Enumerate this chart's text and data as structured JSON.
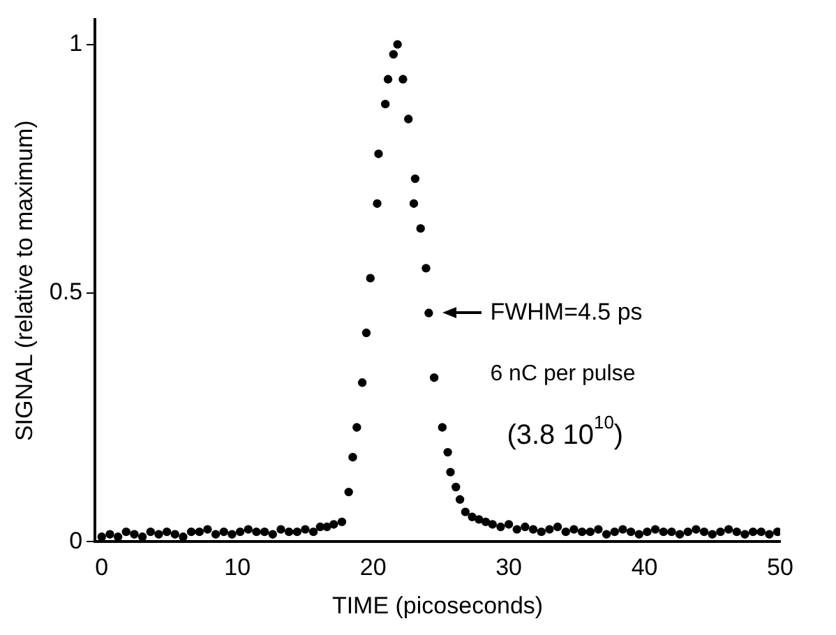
{
  "chart_data": {
    "type": "scatter",
    "xlabel": "TIME (picoseconds)",
    "ylabel": "SIGNAL (relative to maximum)",
    "x": [
      0,
      0.6,
      1.2,
      1.8,
      2.4,
      3,
      3.6,
      4.2,
      4.8,
      5.4,
      6,
      6.6,
      7.2,
      7.8,
      8.4,
      9,
      9.6,
      10.2,
      10.8,
      11.4,
      12,
      12.6,
      13.2,
      13.8,
      14.4,
      15,
      15.6,
      16.1,
      16.6,
      17.1,
      17.7,
      18.2,
      18.5,
      18.8,
      19.2,
      19.5,
      19.8,
      20.3,
      20.4,
      20.9,
      21.1,
      21.5,
      21.8,
      22.2,
      22.6,
      23,
      23.1,
      23.5,
      23.9,
      24.1,
      24.5,
      25.1,
      25.5,
      25.7,
      26.1,
      26.4,
      26.8,
      27.3,
      27.8,
      28.3,
      28.8,
      29.4,
      30,
      30.6,
      31.2,
      31.8,
      32.4,
      33,
      33.6,
      34.2,
      34.8,
      35.4,
      36,
      36.6,
      37.2,
      37.8,
      38.4,
      39,
      39.6,
      40.2,
      40.8,
      41.4,
      42,
      42.6,
      43.2,
      43.8,
      44.4,
      45,
      45.6,
      46.2,
      46.8,
      47.4,
      48,
      48.6,
      49.2,
      49.8
    ],
    "values": [
      0.01,
      0.015,
      0.01,
      0.02,
      0.015,
      0.01,
      0.02,
      0.015,
      0.02,
      0.015,
      0.01,
      0.02,
      0.02,
      0.025,
      0.015,
      0.02,
      0.015,
      0.02,
      0.025,
      0.02,
      0.02,
      0.015,
      0.025,
      0.02,
      0.02,
      0.025,
      0.02,
      0.03,
      0.03,
      0.035,
      0.04,
      0.1,
      0.17,
      0.23,
      0.32,
      0.42,
      0.53,
      0.68,
      0.78,
      0.88,
      0.93,
      0.98,
      1.0,
      0.93,
      0.85,
      0.68,
      0.73,
      0.63,
      0.55,
      0.46,
      0.33,
      0.23,
      0.18,
      0.14,
      0.11,
      0.085,
      0.06,
      0.05,
      0.045,
      0.04,
      0.035,
      0.03,
      0.035,
      0.025,
      0.03,
      0.025,
      0.02,
      0.025,
      0.03,
      0.02,
      0.025,
      0.02,
      0.02,
      0.025,
      0.015,
      0.02,
      0.025,
      0.02,
      0.015,
      0.02,
      0.025,
      0.02,
      0.02,
      0.015,
      0.02,
      0.025,
      0.02,
      0.015,
      0.02,
      0.025,
      0.02,
      0.015,
      0.02,
      0.02,
      0.015,
      0.02
    ],
    "color": "#000000",
    "marker": "circle",
    "grid": false,
    "legend": false,
    "xlim": [
      -0.5,
      50
    ],
    "xticks": [
      0,
      10,
      20,
      30,
      40,
      50
    ],
    "ylim": [
      0,
      1.05
    ],
    "yticks": [
      0,
      0.5,
      1
    ],
    "annotations": [
      {
        "text": "FWHM=4.5 ps",
        "x": 24.1,
        "y": 0.46
      },
      "6 nC per pulse",
      "(3.8 10$^{10}$)"
    ]
  }
}
